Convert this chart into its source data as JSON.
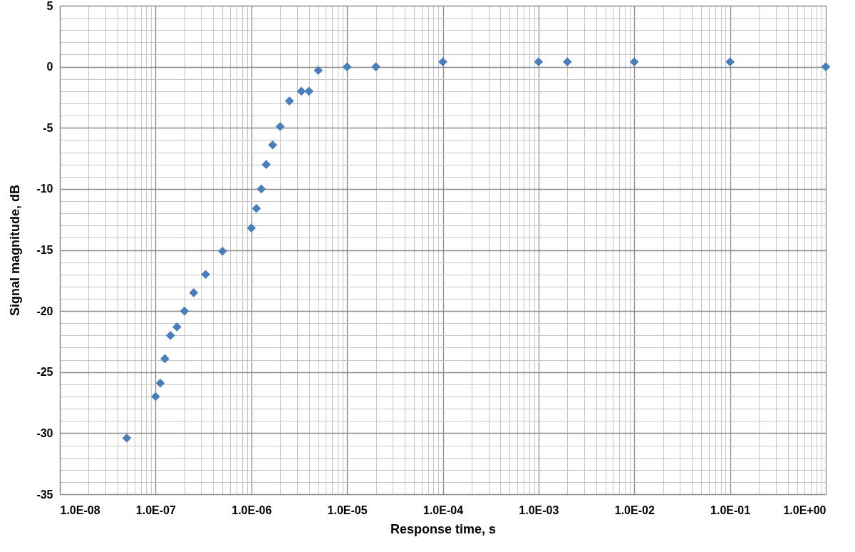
{
  "chart_data": {
    "type": "scatter",
    "xlabel": "Response time, s",
    "ylabel": "Signal magnitude, dB",
    "x": [
      5e-08,
      1e-07,
      1.12e-07,
      1.25e-07,
      1.43e-07,
      1.67e-07,
      2e-07,
      2.5e-07,
      3.33e-07,
      5e-07,
      1e-06,
      1.13e-06,
      1.27e-06,
      1.43e-06,
      1.67e-06,
      2e-06,
      2.5e-06,
      3.33e-06,
      4e-06,
      5e-06,
      1e-05,
      2e-05,
      0.0001,
      0.001,
      0.002,
      0.01,
      0.1,
      1
    ],
    "series": [
      {
        "color": "#4a7ebb",
        "values": [
          -30.4,
          -27.0,
          -25.9,
          -23.9,
          -22.0,
          -21.3,
          -20.0,
          -18.5,
          -17.0,
          -15.1,
          -13.2,
          -11.6,
          -10.0,
          -8.0,
          -6.4,
          -4.9,
          -2.8,
          -2.0,
          -2.0,
          -0.3,
          0,
          0,
          0.4,
          0.4,
          0.4,
          0.4,
          0.4,
          0
        ]
      }
    ],
    "log": "x",
    "xlim": [
      1e-08,
      1
    ],
    "ylim": [
      -35,
      5
    ],
    "xticks": [
      {
        "value": 1e-08,
        "label": "1.0E-08"
      },
      {
        "value": 2e-08,
        "label": null
      },
      {
        "value": 3e-08,
        "label": null
      },
      {
        "value": 4e-08,
        "label": null
      },
      {
        "value": 5e-08,
        "label": null
      },
      {
        "value": 6e-08,
        "label": null
      },
      {
        "value": 7e-08,
        "label": null
      },
      {
        "value": 8e-08,
        "label": null
      },
      {
        "value": 9e-08,
        "label": null
      },
      {
        "value": 1e-07,
        "label": "1.0E-07"
      },
      {
        "value": 2e-07,
        "label": null
      },
      {
        "value": 3e-07,
        "label": null
      },
      {
        "value": 4e-07,
        "label": null
      },
      {
        "value": 5e-07,
        "label": null
      },
      {
        "value": 6e-07,
        "label": null
      },
      {
        "value": 7e-07,
        "label": null
      },
      {
        "value": 8e-07,
        "label": null
      },
      {
        "value": 9e-07,
        "label": null
      },
      {
        "value": 1e-06,
        "label": "1.0E-06"
      },
      {
        "value": 2e-06,
        "label": null
      },
      {
        "value": 3e-06,
        "label": null
      },
      {
        "value": 4e-06,
        "label": null
      },
      {
        "value": 5e-06,
        "label": null
      },
      {
        "value": 6e-06,
        "label": null
      },
      {
        "value": 7e-06,
        "label": null
      },
      {
        "value": 8e-06,
        "label": null
      },
      {
        "value": 9e-06,
        "label": null
      },
      {
        "value": 1e-05,
        "label": "1.0E-05"
      },
      {
        "value": 2e-05,
        "label": null
      },
      {
        "value": 3e-05,
        "label": null
      },
      {
        "value": 4e-05,
        "label": null
      },
      {
        "value": 5e-05,
        "label": null
      },
      {
        "value": 6e-05,
        "label": null
      },
      {
        "value": 7e-05,
        "label": null
      },
      {
        "value": 8e-05,
        "label": null
      },
      {
        "value": 9e-05,
        "label": null
      },
      {
        "value": 0.0001,
        "label": "1.0E-04"
      },
      {
        "value": 0.0002,
        "label": null
      },
      {
        "value": 0.0003,
        "label": null
      },
      {
        "value": 0.0004,
        "label": null
      },
      {
        "value": 0.0005,
        "label": null
      },
      {
        "value": 0.0006,
        "label": null
      },
      {
        "value": 0.0007,
        "label": null
      },
      {
        "value": 0.0008,
        "label": null
      },
      {
        "value": 0.0009,
        "label": null
      },
      {
        "value": 0.001,
        "label": "1.0E-03"
      },
      {
        "value": 0.002,
        "label": null
      },
      {
        "value": 0.003,
        "label": null
      },
      {
        "value": 0.004,
        "label": null
      },
      {
        "value": 0.005,
        "label": null
      },
      {
        "value": 0.006,
        "label": null
      },
      {
        "value": 0.007,
        "label": null
      },
      {
        "value": 0.008,
        "label": null
      },
      {
        "value": 0.009,
        "label": null
      },
      {
        "value": 0.01,
        "label": "1.0E-02"
      },
      {
        "value": 0.02,
        "label": null
      },
      {
        "value": 0.03,
        "label": null
      },
      {
        "value": 0.04,
        "label": null
      },
      {
        "value": 0.05,
        "label": null
      },
      {
        "value": 0.06,
        "label": null
      },
      {
        "value": 0.07,
        "label": null
      },
      {
        "value": 0.08,
        "label": null
      },
      {
        "value": 0.09,
        "label": null
      },
      {
        "value": 0.1,
        "label": "1.0E-01"
      },
      {
        "value": 0.2,
        "label": null
      },
      {
        "value": 0.3,
        "label": null
      },
      {
        "value": 0.4,
        "label": null
      },
      {
        "value": 0.5,
        "label": null
      },
      {
        "value": 0.6,
        "label": null
      },
      {
        "value": 0.7,
        "label": null
      },
      {
        "value": 0.8,
        "label": null
      },
      {
        "value": 0.9,
        "label": null
      },
      {
        "value": 1,
        "label": "1.0E+00"
      }
    ],
    "yticks": [
      -35,
      {
        "value": -34,
        "label": null
      },
      {
        "value": -33,
        "label": null
      },
      {
        "value": -32,
        "label": null
      },
      {
        "value": -31,
        "label": null
      },
      -30,
      {
        "value": -29,
        "label": null
      },
      {
        "value": -28,
        "label": null
      },
      {
        "value": -27,
        "label": null
      },
      {
        "value": -26,
        "label": null
      },
      -25,
      {
        "value": -24,
        "label": null
      },
      {
        "value": -23,
        "label": null
      },
      {
        "value": -22,
        "label": null
      },
      {
        "value": -21,
        "label": null
      },
      -20,
      {
        "value": -19,
        "label": null
      },
      {
        "value": -18,
        "label": null
      },
      {
        "value": -17,
        "label": null
      },
      {
        "value": -16,
        "label": null
      },
      -15,
      {
        "value": -14,
        "label": null
      },
      {
        "value": -13,
        "label": null
      },
      {
        "value": -12,
        "label": null
      },
      {
        "value": -11,
        "label": null
      },
      -10,
      {
        "value": -9,
        "label": null
      },
      {
        "value": -8,
        "label": null
      },
      {
        "value": -7,
        "label": null
      },
      {
        "value": -6,
        "label": null
      },
      -5,
      {
        "value": -4,
        "label": null
      },
      {
        "value": -3,
        "label": null
      },
      {
        "value": -2,
        "label": null
      },
      {
        "value": -1,
        "label": null
      },
      0,
      {
        "value": 1,
        "label": null
      },
      {
        "value": 2,
        "label": null
      },
      {
        "value": 3,
        "label": null
      },
      {
        "value": 4,
        "label": null
      },
      5
    ],
    "grid": true,
    "marker": "diamond"
  }
}
